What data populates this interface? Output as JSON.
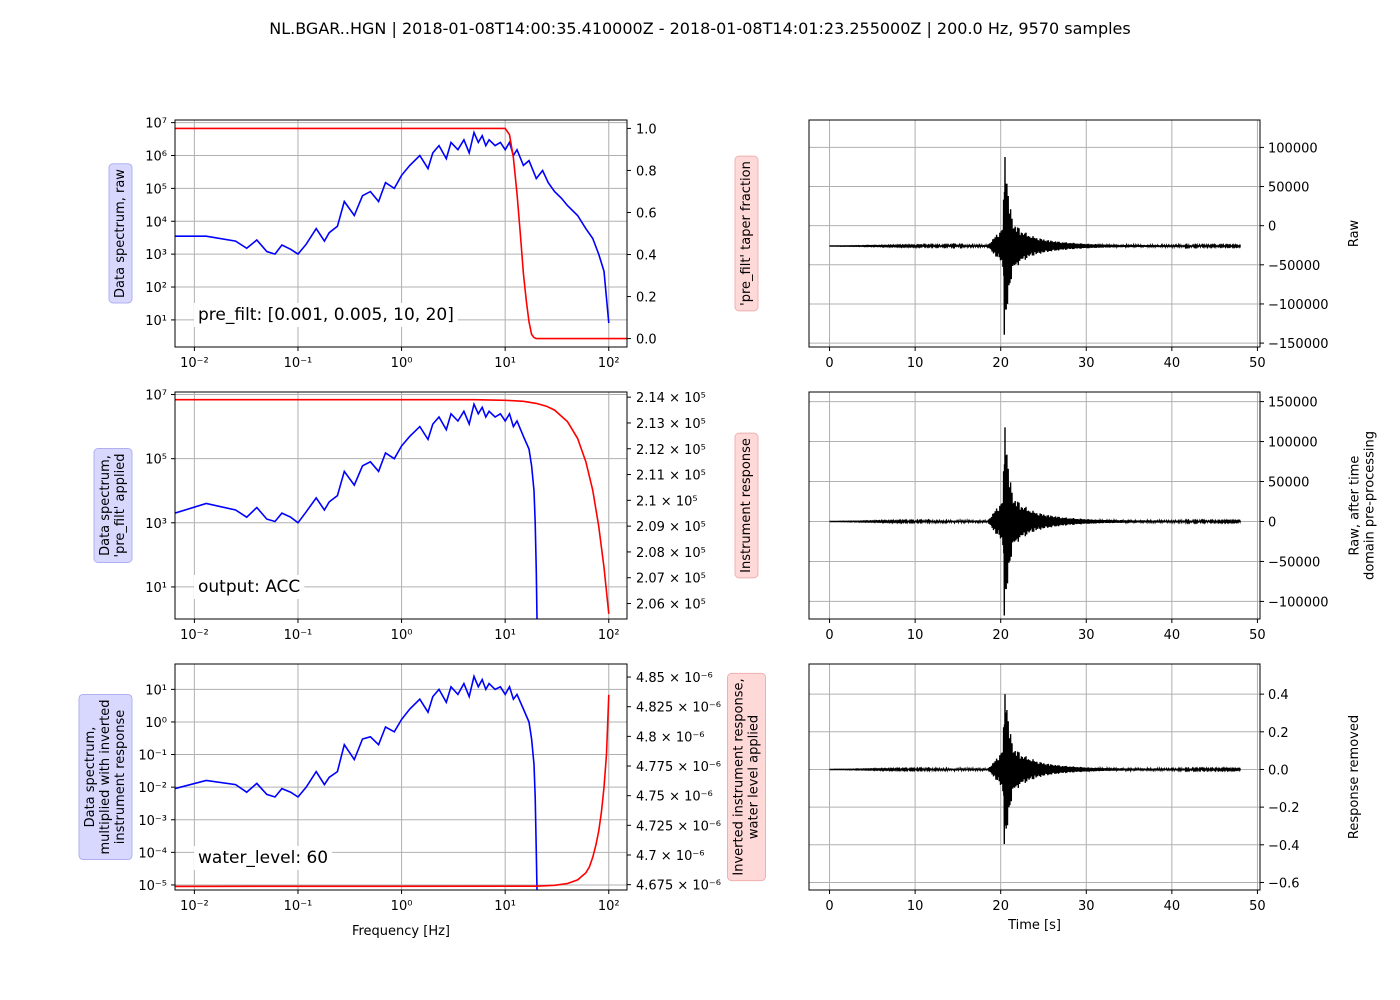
{
  "suptitle": "NL.BGAR..HGN | 2018-01-08T14:00:35.410000Z - 2018-01-08T14:01:23.255000Z | 200.0 Hz, 9570 samples",
  "colors": {
    "spectrum": "#0000ff",
    "response": "#ff0000",
    "trace": "#000000",
    "blue_box": "#d8d8ff",
    "red_box": "#ffd8d8",
    "grid": "#b0b0b0"
  },
  "chart_data": [
    {
      "type": "line",
      "xscale": "log",
      "yscale": "log",
      "xlim": [
        0.0065,
        150
      ],
      "ylim": [
        1.5,
        12000000
      ],
      "xticks": [
        "10⁻²",
        "10⁻¹",
        "10⁰",
        "10¹",
        "10²"
      ],
      "yticks": [
        "10¹",
        "10²",
        "10³",
        "10⁴",
        "10⁵",
        "10⁶",
        "10⁷"
      ],
      "ylabel": [
        "Data spectrum, raw"
      ],
      "annotation": "pre_filt: [0.001, 0.005, 10, 20]",
      "series": [
        {
          "x": [
            0.0065,
            0.013,
            0.025,
            0.032,
            0.04,
            0.05,
            0.06,
            0.07,
            0.085,
            0.1,
            0.12,
            0.15,
            0.18,
            0.2,
            0.24,
            0.28,
            0.35,
            0.42,
            0.5,
            0.6,
            0.7,
            0.85,
            1,
            1.2,
            1.5,
            1.8,
            2,
            2.3,
            2.7,
            3,
            3.5,
            4,
            4.5,
            5,
            5.5,
            6,
            6.5,
            7,
            8,
            9,
            10,
            11,
            12,
            13,
            15,
            17,
            20,
            23,
            26,
            30,
            35,
            40,
            50,
            60,
            70,
            80,
            90,
            100
          ],
          "y": [
            3500,
            3500,
            2500,
            1500,
            2700,
            1200,
            1000,
            1900,
            1400,
            1000,
            2000,
            6000,
            2500,
            4500,
            7000,
            40000,
            15000,
            60000,
            80000,
            40000,
            150000,
            100000,
            250000,
            500000,
            1000000,
            400000,
            1200000,
            2000000,
            800000,
            2500000,
            1500000,
            3000000,
            1200000,
            5000000,
            2500000,
            4000000,
            2000000,
            3000000,
            2000000,
            2500000,
            1500000,
            2500000,
            1000000,
            1500000,
            500000,
            700000,
            200000,
            350000,
            150000,
            80000,
            50000,
            30000,
            15000,
            6000,
            3000,
            1000,
            300,
            8
          ]
        },
        {
          "x": [
            0.0065,
            3,
            5,
            8,
            10,
            11,
            12,
            13,
            14,
            15,
            16,
            17,
            18,
            19,
            20,
            150
          ],
          "y": [
            1.0,
            1.0,
            1.0,
            1.0,
            1.0,
            0.97,
            0.86,
            0.69,
            0.5,
            0.31,
            0.18,
            0.08,
            0.02,
            0.005,
            0.0,
            0.0
          ]
        }
      ],
      "y2lim": [
        -0.04,
        1.04
      ],
      "y2ticks": [
        "0.0",
        "0.2",
        "0.4",
        "0.6",
        "0.8",
        "1.0"
      ],
      "y2label": [
        "'pre_filt' taper fraction"
      ]
    },
    {
      "type": "line",
      "xscale": "log",
      "yscale": "log",
      "xlim": [
        0.0065,
        150
      ],
      "ylim": [
        1,
        12000000
      ],
      "xticks": [
        "10⁻²",
        "10⁻¹",
        "10⁰",
        "10¹",
        "10²"
      ],
      "yticks": [
        "10¹",
        "10³",
        "10⁵",
        "10⁷"
      ],
      "ylabel": [
        "Data spectrum,",
        "'pre_filt' applied"
      ],
      "annotation": "output: ACC",
      "series": [
        {
          "x": [
            0.0065,
            0.013,
            0.025,
            0.032,
            0.04,
            0.05,
            0.06,
            0.07,
            0.085,
            0.1,
            0.12,
            0.15,
            0.18,
            0.2,
            0.24,
            0.28,
            0.35,
            0.42,
            0.5,
            0.6,
            0.7,
            0.85,
            1,
            1.2,
            1.5,
            1.8,
            2,
            2.3,
            2.7,
            3,
            3.5,
            4,
            4.5,
            5,
            5.5,
            6,
            6.5,
            7,
            8,
            9,
            10,
            11,
            12,
            13,
            15,
            17,
            18,
            19,
            19.5,
            20,
            20.3
          ],
          "y": [
            2000,
            4000,
            2500,
            1500,
            3000,
            1300,
            1100,
            2000,
            1500,
            1000,
            2200,
            6000,
            2500,
            4500,
            7000,
            40000,
            15000,
            60000,
            80000,
            40000,
            150000,
            100000,
            250000,
            500000,
            1000000,
            400000,
            1200000,
            2000000,
            800000,
            2500000,
            1500000,
            3000000,
            1200000,
            5000000,
            2500000,
            4000000,
            2000000,
            3000000,
            2000000,
            2500000,
            1500000,
            2500000,
            1000000,
            1500000,
            500000,
            200000,
            60000,
            10000,
            1000,
            30,
            1
          ]
        },
        {
          "x": [
            0.0065,
            5,
            10,
            15,
            20,
            25,
            30,
            40,
            50,
            60,
            70,
            80,
            90,
            100
          ],
          "y": [
            213900,
            213900,
            213880,
            213840,
            213760,
            213650,
            213500,
            213050,
            212400,
            211500,
            210400,
            209000,
            207400,
            205600
          ]
        }
      ],
      "y2lim": [
        205400,
        214200
      ],
      "y2ticks": [
        "2.06 × 10⁵",
        "2.07 × 10⁵",
        "2.08 × 10⁵",
        "2.09 × 10⁵",
        "2.1 × 10⁵",
        "2.11 × 10⁵",
        "2.12 × 10⁵",
        "2.13 × 10⁵",
        "2.14 × 10⁵"
      ],
      "y2label": [
        "Instrument response"
      ]
    },
    {
      "type": "line",
      "xscale": "log",
      "yscale": "log",
      "xlim": [
        0.0065,
        150
      ],
      "ylim": [
        7e-06,
        60
      ],
      "xticks": [
        "10⁻²",
        "10⁻¹",
        "10⁰",
        "10¹",
        "10²"
      ],
      "yticks": [
        "10⁻⁵",
        "10⁻⁴",
        "10⁻³",
        "10⁻²",
        "10⁻¹",
        "10⁰",
        "10¹"
      ],
      "xlabel": "Frequency [Hz]",
      "ylabel": [
        "Data spectrum,",
        "multiplied with inverted",
        "instrument response"
      ],
      "annotation": "water_level: 60",
      "series": [
        {
          "x": [
            0.0065,
            0.013,
            0.025,
            0.032,
            0.04,
            0.05,
            0.06,
            0.07,
            0.085,
            0.1,
            0.12,
            0.15,
            0.18,
            0.2,
            0.24,
            0.28,
            0.35,
            0.42,
            0.5,
            0.6,
            0.7,
            0.85,
            1,
            1.2,
            1.5,
            1.8,
            2,
            2.3,
            2.7,
            3,
            3.5,
            4,
            4.5,
            5,
            5.5,
            6,
            6.5,
            7,
            8,
            9,
            10,
            11,
            12,
            13,
            15,
            17,
            18,
            19,
            19.5,
            20,
            20.3
          ],
          "y": [
            0.009,
            0.016,
            0.012,
            0.007,
            0.013,
            0.006,
            0.005,
            0.009,
            0.007,
            0.005,
            0.01,
            0.03,
            0.012,
            0.02,
            0.03,
            0.2,
            0.07,
            0.3,
            0.35,
            0.2,
            0.7,
            0.5,
            1.2,
            2.5,
            5,
            2,
            6,
            10,
            4,
            12,
            7,
            15,
            6,
            25,
            12,
            20,
            10,
            15,
            10,
            12,
            7,
            12,
            5,
            7,
            2.5,
            1,
            0.3,
            0.05,
            0.005,
            0.0001,
            7e-06
          ]
        },
        {
          "x": [
            0.0065,
            20,
            30,
            40,
            50,
            60,
            65,
            70,
            75,
            80,
            85,
            90,
            95,
            100
          ],
          "y": [
            4.6735e-06,
            4.6737e-06,
            4.6745e-06,
            4.676e-06,
            4.679e-06,
            4.685e-06,
            4.69e-06,
            4.698e-06,
            4.708e-06,
            4.72e-06,
            4.736e-06,
            4.757e-06,
            4.785e-06,
            4.835e-06
          ]
        }
      ],
      "y2lim": [
        4.6705e-06,
        4.861e-06
      ],
      "y2ticks": [
        "4.675 × 10⁻⁶",
        "4.7 × 10⁻⁶",
        "4.725 × 10⁻⁶",
        "4.75 × 10⁻⁶",
        "4.775 × 10⁻⁶",
        "4.8 × 10⁻⁶",
        "4.825 × 10⁻⁶",
        "4.85 × 10⁻⁶"
      ],
      "y2label": [
        "Inverted instrument response,",
        "water level applied"
      ]
    },
    {
      "type": "line",
      "xlim": [
        -2.4,
        50.3
      ],
      "ylim": [
        -155000,
        135000
      ],
      "xticks": [
        0,
        10,
        20,
        30,
        40,
        50
      ],
      "yticks": [
        -150000,
        -100000,
        -50000,
        0,
        50000,
        100000
      ],
      "ylabel": [
        "Raw"
      ],
      "baseline": -26000,
      "series": [
        {
          "name": "",
          "t": [
            0,
            18.5,
            19,
            19.5,
            20,
            20.3,
            20.45,
            20.55,
            20.65,
            20.75,
            20.9,
            21,
            21.2,
            21.4,
            21.6,
            21.8,
            22,
            22.3,
            22.6,
            23,
            23.5,
            24,
            25,
            26,
            27,
            28,
            30,
            32,
            35,
            38,
            42,
            46,
            48
          ],
          "amp": [
            0,
            1000,
            8000,
            15000,
            20000,
            30000,
            145000,
            140000,
            115000,
            90000,
            70000,
            60000,
            45000,
            35000,
            30000,
            28000,
            25000,
            22000,
            20000,
            17000,
            14000,
            12000,
            9000,
            7000,
            5500,
            4500,
            3000,
            2000,
            1500,
            1200,
            800,
            600,
            500
          ]
        }
      ]
    },
    {
      "type": "line",
      "xlim": [
        -2.4,
        50.3
      ],
      "ylim": [
        -122000,
        162000
      ],
      "xticks": [
        0,
        10,
        20,
        30,
        40,
        50
      ],
      "yticks": [
        -100000,
        -50000,
        0,
        50000,
        100000,
        150000
      ],
      "ylabel": [
        "Raw, after time",
        "domain pre-processing"
      ],
      "baseline": 0,
      "series": [
        {
          "name": "",
          "t": [
            0,
            18.5,
            19,
            19.5,
            20,
            20.3,
            20.45,
            20.55,
            20.65,
            20.75,
            20.9,
            21,
            21.2,
            21.4,
            21.6,
            21.8,
            22,
            22.3,
            22.6,
            23,
            23.5,
            24,
            25,
            26,
            27,
            28,
            30,
            32,
            35,
            38,
            42,
            46,
            48
          ],
          "amp": [
            0,
            1200,
            9000,
            17000,
            23000,
            33000,
            150000,
            145000,
            120000,
            95000,
            72000,
            62000,
            47000,
            36000,
            31000,
            29000,
            26000,
            23000,
            21000,
            18000,
            15000,
            12500,
            9500,
            7500,
            5800,
            4700,
            3100,
            2100,
            1600,
            1200,
            800,
            600,
            500
          ]
        }
      ]
    },
    {
      "type": "line",
      "xlim": [
        -2.4,
        50.3
      ],
      "ylim": [
        -0.64,
        0.56
      ],
      "xticks": [
        0,
        10,
        20,
        30,
        40,
        50
      ],
      "yticks": [
        "-0.6",
        "-0.4",
        "-0.2",
        "0.0",
        "0.2",
        "0.4"
      ],
      "xlabel": "Time [s]",
      "ylabel": [
        "Response removed"
      ],
      "baseline": 0,
      "series": [
        {
          "name": "",
          "t": [
            0,
            18.5,
            19,
            19.5,
            20,
            20.3,
            20.45,
            20.55,
            20.65,
            20.75,
            20.9,
            21,
            21.2,
            21.4,
            21.6,
            21.8,
            22,
            22.3,
            22.6,
            23,
            23.5,
            24,
            25,
            26,
            27,
            28,
            30,
            32,
            35,
            38,
            42,
            46,
            48
          ],
          "amp": [
            0,
            0.005,
            0.03,
            0.06,
            0.09,
            0.13,
            0.5,
            0.5,
            0.45,
            0.36,
            0.28,
            0.24,
            0.18,
            0.14,
            0.12,
            0.11,
            0.1,
            0.09,
            0.08,
            0.07,
            0.06,
            0.05,
            0.036,
            0.028,
            0.022,
            0.018,
            0.012,
            0.008,
            0.006,
            0.005,
            0.003,
            0.0025,
            0.002
          ]
        }
      ]
    }
  ]
}
